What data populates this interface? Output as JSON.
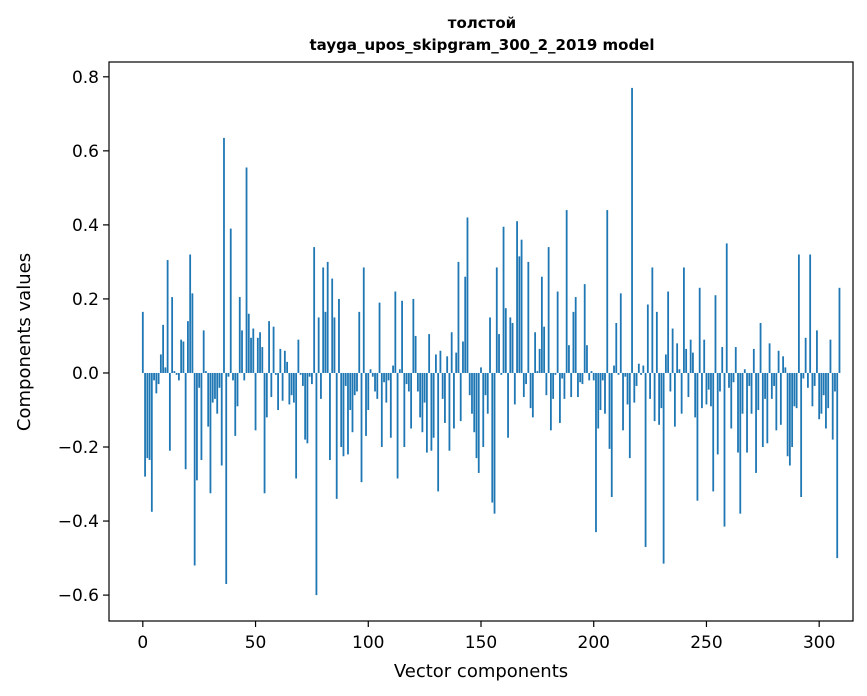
{
  "chart_data": {
    "type": "bar",
    "title": "толстой",
    "subtitle": "tayga_upos_skipgram_300_2_2019 model",
    "xlabel": "Vector components",
    "ylabel": "Components values",
    "xlim": [
      -15,
      315
    ],
    "ylim": [
      -0.67,
      0.84
    ],
    "xticks": [
      0,
      50,
      100,
      150,
      200,
      250,
      300
    ],
    "yticks": [
      -0.6,
      -0.4,
      -0.2,
      0.0,
      0.2,
      0.4,
      0.6,
      0.8
    ],
    "ytick_labels": [
      "−0.6",
      "−0.4",
      "−0.2",
      "0.0",
      "0.2",
      "0.4",
      "0.6",
      "0.8"
    ],
    "bar_color": "#1f77b4",
    "grid": false,
    "values": [
      0.165,
      -0.28,
      -0.23,
      -0.235,
      -0.375,
      -0.02,
      -0.055,
      -0.03,
      0.05,
      0.13,
      0.015,
      0.305,
      -0.21,
      0.205,
      0.005,
      -0.005,
      -0.02,
      0.09,
      0.085,
      -0.26,
      0.14,
      0.32,
      0.215,
      -0.52,
      -0.29,
      -0.04,
      -0.235,
      0.115,
      0.005,
      -0.145,
      -0.325,
      -0.08,
      -0.07,
      -0.11,
      -0.04,
      -0.25,
      0.635,
      -0.57,
      -0.01,
      0.39,
      -0.02,
      -0.17,
      -0.09,
      0.205,
      0.115,
      -0.02,
      0.555,
      0.16,
      0.095,
      0.12,
      -0.155,
      0.095,
      0.11,
      0.07,
      -0.325,
      -0.12,
      0.14,
      -0.065,
      0.125,
      -0.005,
      -0.1,
      0.065,
      -0.075,
      0.06,
      0.03,
      -0.085,
      -0.06,
      -0.08,
      -0.285,
      0.09,
      -0.005,
      -0.035,
      -0.18,
      -0.19,
      -0.01,
      -0.03,
      0.34,
      -0.6,
      0.15,
      -0.07,
      0.285,
      0.165,
      0.3,
      -0.235,
      0.255,
      0.15,
      -0.34,
      0.2,
      -0.2,
      -0.225,
      -0.035,
      -0.22,
      -0.1,
      -0.16,
      -0.06,
      -0.05,
      0.165,
      -0.295,
      0.285,
      -0.17,
      -0.1,
      0.01,
      -0.01,
      -0.05,
      -0.07,
      0.19,
      -0.2,
      -0.025,
      -0.08,
      -0.02,
      -0.175,
      0.02,
      0.22,
      -0.285,
      0.01,
      0.195,
      -0.2,
      -0.03,
      -0.05,
      -0.15,
      0.2,
      0.1,
      -0.05,
      -0.12,
      -0.16,
      -0.08,
      -0.215,
      0.105,
      -0.21,
      -0.175,
      0.05,
      -0.32,
      0.06,
      -0.07,
      -0.135,
      0.045,
      -0.21,
      0.11,
      -0.15,
      0.055,
      0.3,
      -0.13,
      0.085,
      0.26,
      0.42,
      -0.06,
      -0.11,
      -0.16,
      -0.23,
      -0.27,
      0.015,
      -0.2,
      -0.06,
      -0.11,
      0.15,
      -0.35,
      -0.38,
      0.285,
      0.105,
      -0.005,
      0.395,
      0.175,
      -0.175,
      0.15,
      0.135,
      -0.085,
      0.41,
      0.315,
      0.36,
      -0.065,
      -0.03,
      0.3,
      -0.095,
      -0.12,
      0.11,
      0.005,
      0.065,
      0.26,
      0.125,
      -0.06,
      0.34,
      -0.155,
      -0.07,
      -0.005,
      0.22,
      -0.135,
      -0.015,
      -0.07,
      0.44,
      0.075,
      -0.065,
      0.165,
      0.205,
      -0.065,
      -0.025,
      -0.03,
      0.24,
      0.075,
      -0.02,
      0.005,
      -0.02,
      -0.43,
      -0.15,
      -0.1,
      -0.02,
      -0.11,
      0.44,
      -0.205,
      -0.335,
      0.02,
      0.135,
      -0.005,
      0.215,
      -0.155,
      -0.01,
      -0.085,
      -0.23,
      0.77,
      -0.08,
      -0.035,
      0.025,
      -0.005,
      0.02,
      -0.47,
      0.185,
      -0.07,
      0.285,
      -0.13,
      0.165,
      -0.14,
      -0.095,
      -0.515,
      0.05,
      0.22,
      -0.05,
      0.12,
      -0.145,
      0.08,
      0.01,
      -0.11,
      0.285,
      0.065,
      -0.065,
      0.09,
      0.055,
      -0.12,
      -0.345,
      0.23,
      -0.095,
      0.09,
      -0.085,
      -0.045,
      -0.09,
      -0.32,
      0.21,
      -0.22,
      -0.05,
      0.07,
      -0.415,
      0.35,
      -0.04,
      -0.15,
      -0.025,
      0.07,
      -0.215,
      -0.38,
      -0.11,
      0.01,
      -0.215,
      -0.035,
      -0.11,
      0.065,
      -0.27,
      -0.1,
      0.135,
      -0.2,
      -0.07,
      -0.19,
      0.08,
      -0.07,
      -0.035,
      -0.155,
      0.06,
      -0.14,
      0.045,
      0.015,
      -0.225,
      -0.25,
      -0.2,
      -0.09,
      -0.095,
      0.32,
      -0.335,
      -0.015,
      0.095,
      -0.04,
      0.32,
      -0.09,
      -0.035,
      0.115,
      -0.125,
      -0.11,
      -0.06,
      -0.15,
      -0.095,
      0.09,
      -0.18,
      -0.05,
      -0.5,
      0.23
    ]
  }
}
